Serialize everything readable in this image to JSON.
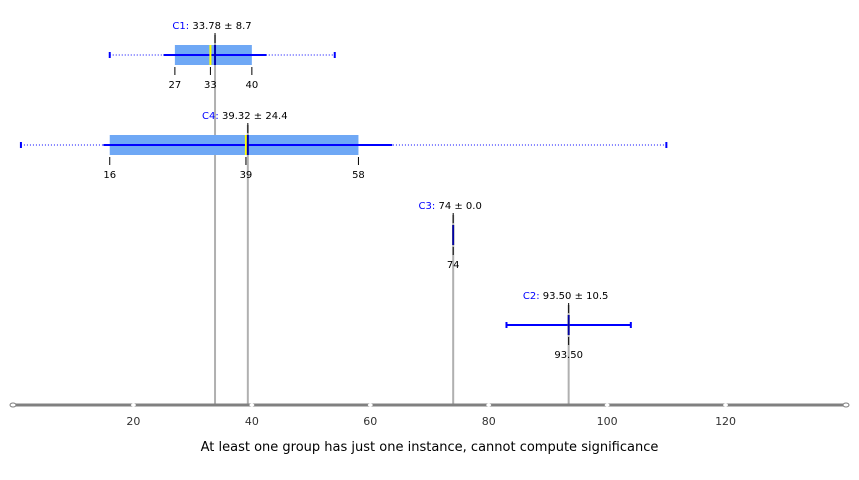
{
  "chart_data": {
    "type": "boxplot",
    "title": "",
    "xlabel": "",
    "ylabel": "",
    "xlim": [
      0,
      140
    ],
    "x_ticks": [
      20,
      40,
      60,
      80,
      100,
      120
    ],
    "x_tick_labels": [
      "20",
      "40",
      "60",
      "80",
      "100",
      "120"
    ],
    "grid": false,
    "footer_text": "At least one group has just one instance, cannot compute significance",
    "colors": {
      "box": "#6fa8f5",
      "whisker": "#0000ff",
      "median": "#ffff00",
      "mean": "#0000aa",
      "mean_line": "#b0b0b0",
      "axis": "#808080"
    },
    "groups": [
      {
        "name": "C1",
        "mean": 33.78,
        "sd": 8.7,
        "annotation_rest": "33.78 ± 8.7",
        "min": 16.0,
        "max": 54.0,
        "q1": 27,
        "median": 33,
        "q3": 40,
        "sd_low": 25.08,
        "sd_high": 42.48,
        "quartile_labels": [
          "27",
          "33",
          "40"
        ]
      },
      {
        "name": "C4",
        "mean": 39.32,
        "sd": 24.4,
        "annotation_rest": "39.32 ± 24.4",
        "min": 1.0,
        "max": 110.0,
        "q1": 16,
        "median": 39,
        "q3": 58,
        "sd_low": 14.92,
        "sd_high": 63.72,
        "quartile_labels": [
          "16",
          "39",
          "58"
        ]
      },
      {
        "name": "C3",
        "mean": 74.0,
        "sd": 0.0,
        "annotation_rest": "74 ± 0.0",
        "min": 74,
        "max": 74,
        "q1": 74,
        "median": 74,
        "q3": 74,
        "sd_low": 74,
        "sd_high": 74,
        "quartile_labels": [
          "74"
        ]
      },
      {
        "name": "C2",
        "mean": 93.5,
        "sd": 10.5,
        "annotation_rest": "93.50 ± 10.5",
        "min": 93.5,
        "max": 93.5,
        "q1": 93.5,
        "median": 93.5,
        "q3": 93.5,
        "sd_low": 83.0,
        "sd_high": 104.0,
        "quartile_labels": [
          "93.50"
        ]
      }
    ]
  }
}
